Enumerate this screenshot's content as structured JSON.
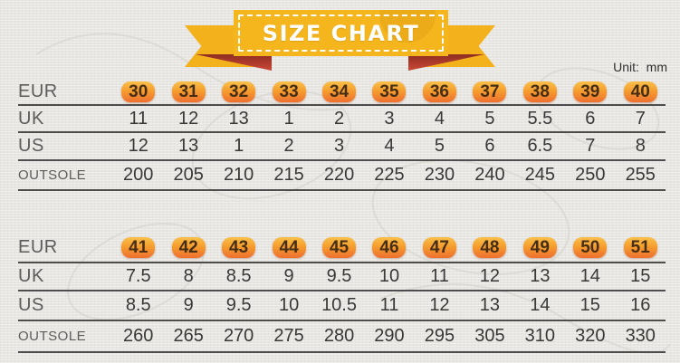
{
  "banner": {
    "title": "SIZE CHART"
  },
  "unit_label": "Unit:  mm",
  "colors": {
    "background": "#e8e6e2",
    "ribbon_yellow": "#f5b51d",
    "fold_red": "#a5362a",
    "badge_gradient_top": "#f9c04a",
    "badge_gradient_bottom": "#ee6f30",
    "table_line": "#4d4d4d",
    "text_dark": "#383838",
    "banner_text": "#ffffff"
  },
  "chart_data": [
    {
      "type": "table",
      "row_labels": [
        "EUR",
        "UK",
        "US",
        "OUTSOLE"
      ],
      "rows": [
        [
          "30",
          "31",
          "32",
          "33",
          "34",
          "35",
          "36",
          "37",
          "38",
          "39",
          "40"
        ],
        [
          "11",
          "12",
          "13",
          "1",
          "2",
          "3",
          "4",
          "5",
          "5.5",
          "6",
          "7"
        ],
        [
          "12",
          "13",
          "1",
          "2",
          "3",
          "4",
          "5",
          "6",
          "6.5",
          "7",
          "8"
        ],
        [
          "200",
          "205",
          "210",
          "215",
          "220",
          "225",
          "230",
          "240",
          "245",
          "250",
          "255"
        ]
      ]
    },
    {
      "type": "table",
      "row_labels": [
        "EUR",
        "UK",
        "US",
        "OUTSOLE"
      ],
      "rows": [
        [
          "41",
          "42",
          "43",
          "44",
          "45",
          "46",
          "47",
          "48",
          "49",
          "50",
          "51"
        ],
        [
          "7.5",
          "8",
          "8.5",
          "9",
          "9.5",
          "10",
          "11",
          "12",
          "13",
          "14",
          "15"
        ],
        [
          "8.5",
          "9",
          "9.5",
          "10",
          "10.5",
          "11",
          "12",
          "13",
          "14",
          "15",
          "16"
        ],
        [
          "260",
          "265",
          "270",
          "275",
          "280",
          "290",
          "295",
          "305",
          "310",
          "320",
          "330"
        ]
      ]
    }
  ]
}
